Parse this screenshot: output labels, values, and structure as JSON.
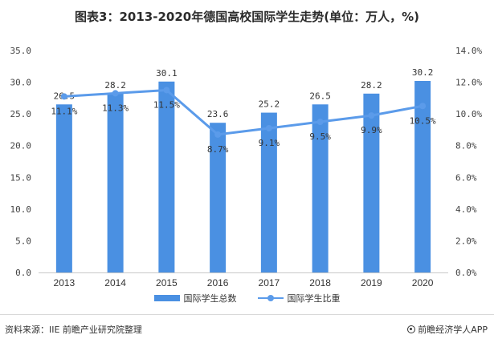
{
  "title": "图表3：2013-2020年德国高校国际学生走势(单位：万人，%)",
  "chart_data": {
    "type": "bar",
    "categories": [
      "2013",
      "2014",
      "2015",
      "2016",
      "2017",
      "2018",
      "2019",
      "2020"
    ],
    "series": [
      {
        "name": "国际学生总数",
        "type": "bar",
        "axis": "left",
        "values": [
          26.5,
          28.2,
          30.1,
          23.6,
          25.2,
          26.5,
          28.2,
          30.2
        ],
        "labels": [
          "26.5",
          "28.2",
          "30.1",
          "23.6",
          "25.2",
          "26.5",
          "28.2",
          "30.2"
        ]
      },
      {
        "name": "国际学生比重",
        "type": "line",
        "axis": "right",
        "values": [
          11.1,
          11.3,
          11.5,
          8.7,
          9.1,
          9.5,
          9.9,
          10.5
        ],
        "labels": [
          "11.1%",
          "11.3%",
          "11.5%",
          "8.7%",
          "9.1%",
          "9.5%",
          "9.9%",
          "10.5%"
        ]
      }
    ],
    "y_left": {
      "ylim": [
        0,
        35
      ],
      "ticks": [
        "0.0",
        "5.0",
        "10.0",
        "15.0",
        "20.0",
        "25.0",
        "30.0",
        "35.0"
      ]
    },
    "y_right": {
      "ylim": [
        0,
        14
      ],
      "ticks": [
        "0.0%",
        "2.0%",
        "4.0%",
        "6.0%",
        "8.0%",
        "10.0%",
        "12.0%",
        "14.0%"
      ]
    },
    "grid": false,
    "legend_position": "bottom-center",
    "colors": {
      "bar": "#4a90e2",
      "line": "#5b9bea"
    }
  },
  "legend": {
    "bar_label": "国际学生总数",
    "line_label": "国际学生比重"
  },
  "footer": {
    "source": "资料来源：IIE 前瞻产业研究院整理",
    "brand": "前瞻经济学人APP"
  }
}
